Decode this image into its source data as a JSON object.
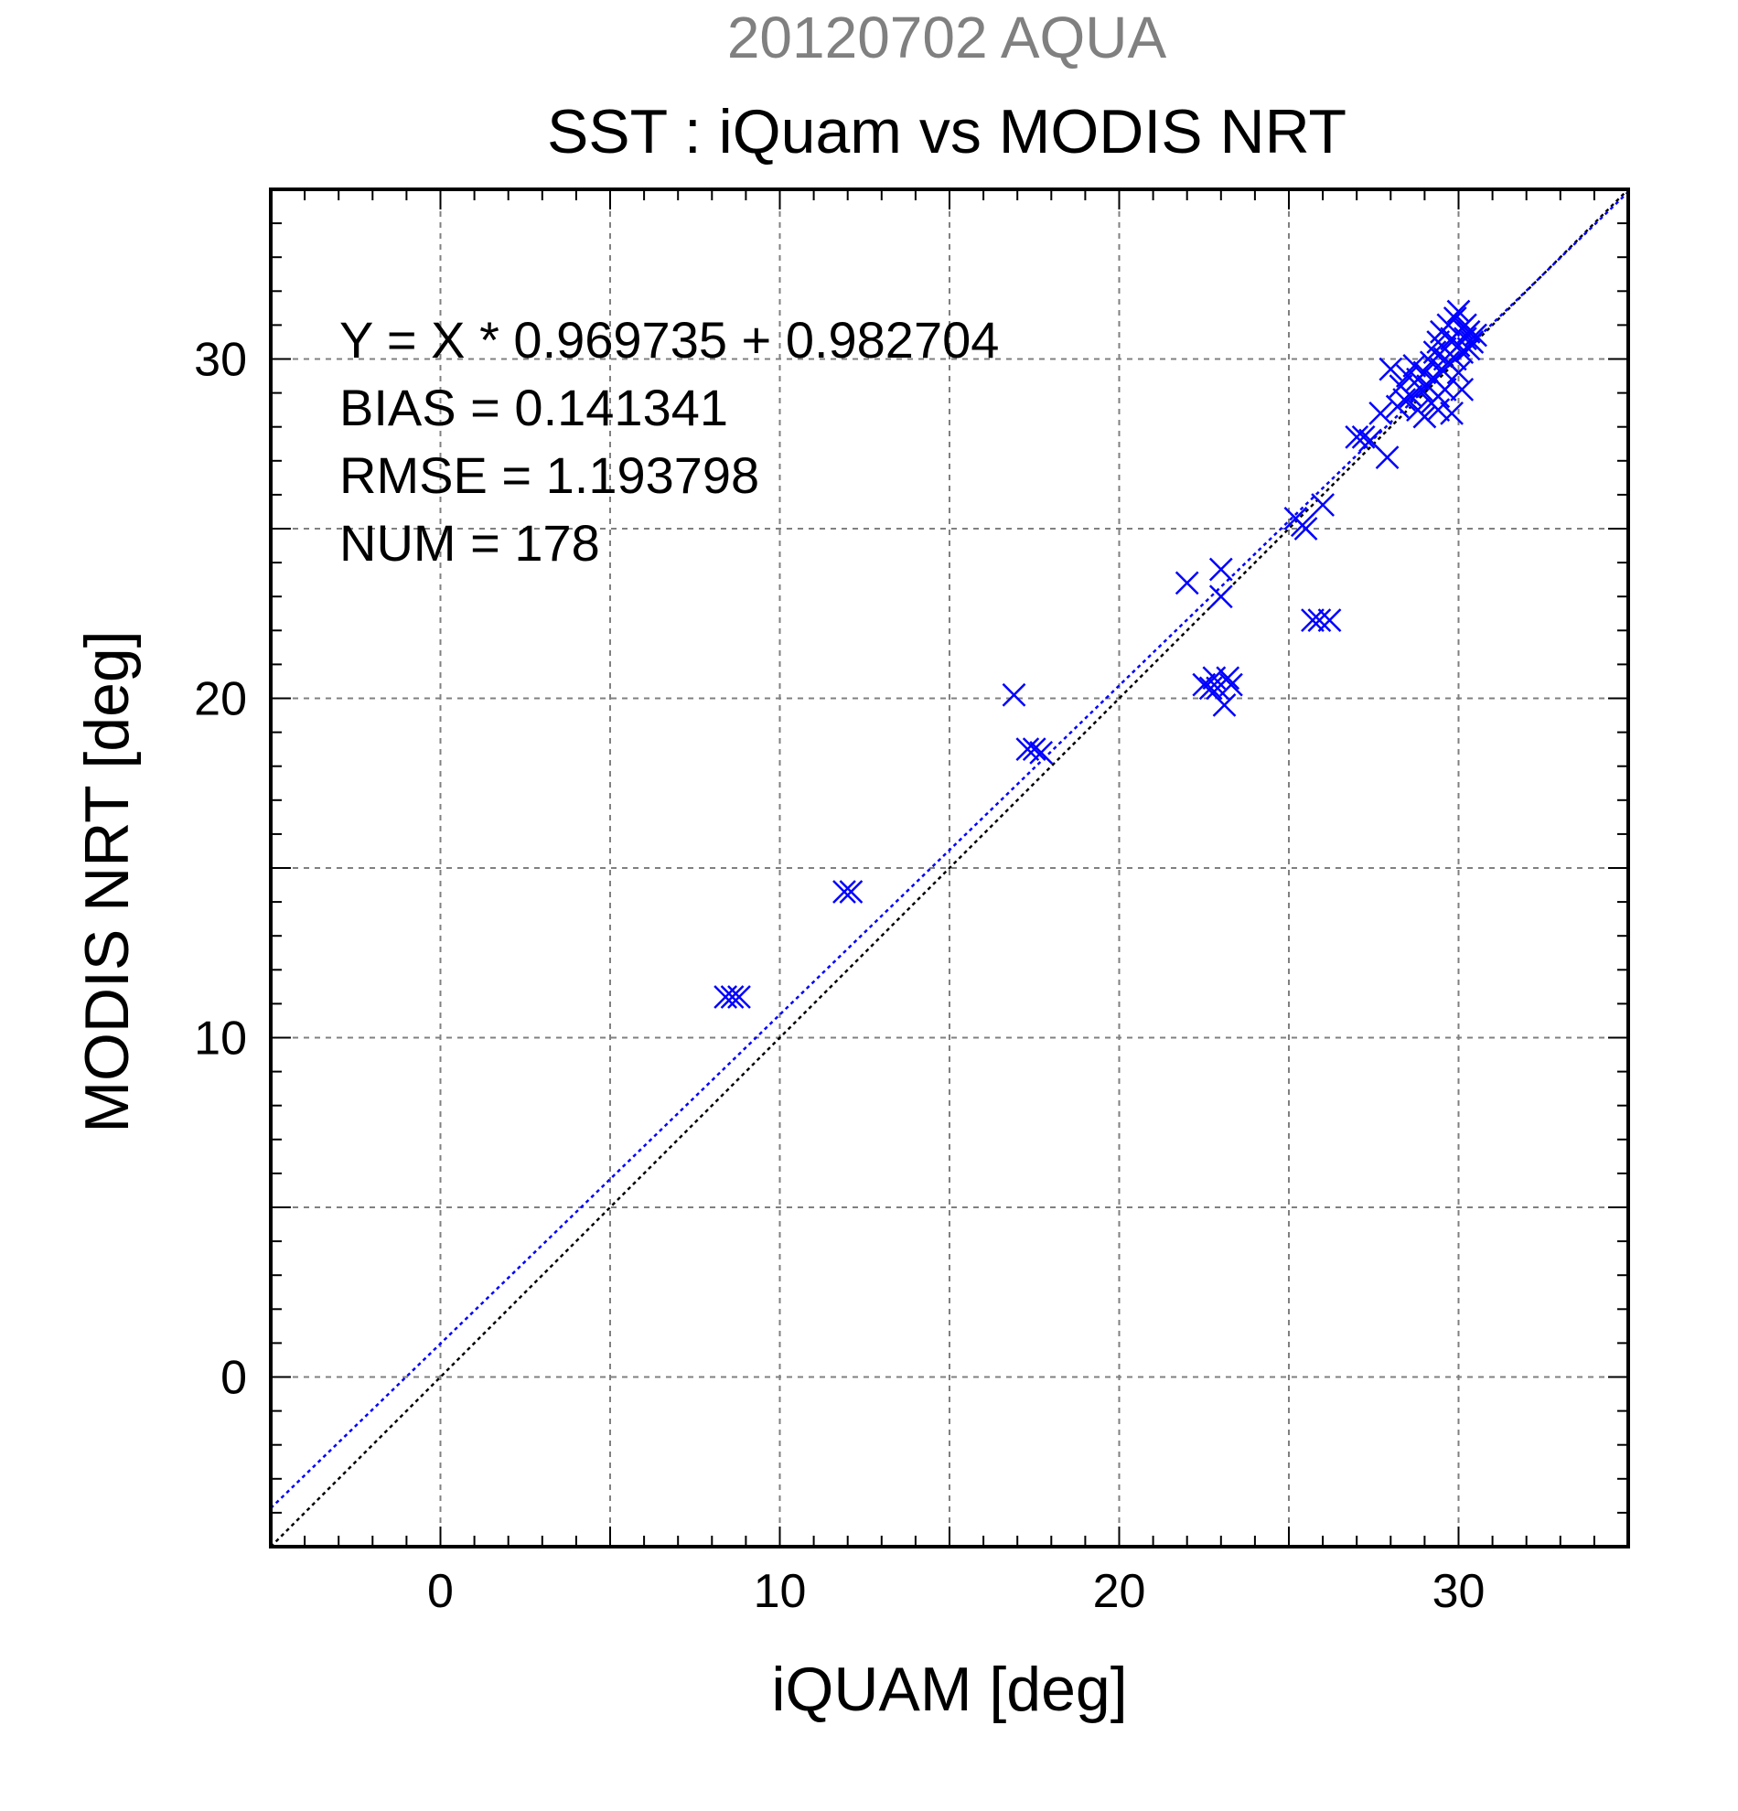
{
  "chart_data": {
    "type": "scatter",
    "supertitle": "20120702 AQUA",
    "title": "SST : iQuam vs MODIS NRT",
    "xlabel": "iQUAM [deg]",
    "ylabel": "MODIS NRT [deg]",
    "xlim": [
      -5,
      35
    ],
    "ylim": [
      -5,
      35
    ],
    "major_ticks": [
      0,
      10,
      20,
      30
    ],
    "tick_labels": [
      "0",
      "10",
      "20",
      "30"
    ],
    "grid_ticks": [
      0,
      5,
      10,
      15,
      20,
      25,
      30
    ],
    "minor_step": 1,
    "grid": true,
    "marker": "x",
    "marker_color": "#0000ff",
    "fit_line_color": "#0000ff",
    "identity_line_color": "#000000",
    "fit": {
      "slope": 0.969735,
      "intercept": 0.982704
    },
    "stats": [
      "Y = X * 0.969735 + 0.982704",
      "BIAS = 0.141341",
      "RMSE = 1.193798",
      "NUM = 178"
    ],
    "points": [
      [
        8.4,
        11.2
      ],
      [
        8.6,
        11.2
      ],
      [
        8.8,
        11.2
      ],
      [
        11.9,
        14.3
      ],
      [
        12.1,
        14.3
      ],
      [
        16.9,
        20.1
      ],
      [
        17.3,
        18.5
      ],
      [
        17.5,
        18.5
      ],
      [
        17.7,
        18.4
      ],
      [
        22.0,
        23.4
      ],
      [
        22.5,
        20.4
      ],
      [
        22.7,
        20.3
      ],
      [
        22.8,
        20.6
      ],
      [
        22.9,
        20.3
      ],
      [
        23.0,
        23.0
      ],
      [
        23.0,
        23.8
      ],
      [
        23.1,
        19.8
      ],
      [
        23.2,
        20.6
      ],
      [
        23.3,
        20.4
      ],
      [
        25.2,
        25.3
      ],
      [
        25.4,
        25.1
      ],
      [
        25.5,
        25.0
      ],
      [
        25.7,
        22.3
      ],
      [
        25.9,
        22.3
      ],
      [
        26.0,
        25.7
      ],
      [
        26.2,
        22.3
      ],
      [
        27.0,
        27.7
      ],
      [
        27.2,
        27.7
      ],
      [
        27.4,
        27.6
      ],
      [
        27.7,
        28.4
      ],
      [
        27.9,
        27.1
      ],
      [
        28.0,
        29.7
      ],
      [
        28.2,
        28.6
      ],
      [
        28.3,
        29.2
      ],
      [
        28.4,
        28.8
      ],
      [
        28.5,
        29.5
      ],
      [
        28.6,
        28.9
      ],
      [
        28.7,
        29.8
      ],
      [
        28.8,
        28.5
      ],
      [
        28.8,
        29.4
      ],
      [
        28.9,
        29.1
      ],
      [
        29.0,
        28.3
      ],
      [
        29.0,
        29.6
      ],
      [
        29.1,
        29.2
      ],
      [
        29.2,
        29.9
      ],
      [
        29.2,
        28.7
      ],
      [
        29.3,
        30.2
      ],
      [
        29.3,
        29.4
      ],
      [
        29.4,
        28.5
      ],
      [
        29.4,
        30.5
      ],
      [
        29.5,
        29.7
      ],
      [
        29.5,
        30.8
      ],
      [
        29.6,
        29.1
      ],
      [
        29.6,
        30.3
      ],
      [
        29.7,
        31.0
      ],
      [
        29.7,
        29.9
      ],
      [
        29.8,
        30.6
      ],
      [
        29.8,
        28.4
      ],
      [
        29.9,
        31.2
      ],
      [
        29.9,
        30.0
      ],
      [
        30.0,
        30.4
      ],
      [
        30.0,
        29.6
      ],
      [
        30.1,
        30.9
      ],
      [
        30.1,
        30.2
      ],
      [
        30.2,
        30.6
      ],
      [
        30.2,
        31.0
      ],
      [
        30.3,
        30.3
      ],
      [
        30.3,
        30.8
      ],
      [
        30.4,
        30.5
      ],
      [
        30.5,
        30.7
      ],
      [
        30.0,
        31.4
      ],
      [
        29.6,
        30.0
      ],
      [
        30.1,
        29.1
      ],
      [
        29.4,
        28.9
      ]
    ]
  }
}
